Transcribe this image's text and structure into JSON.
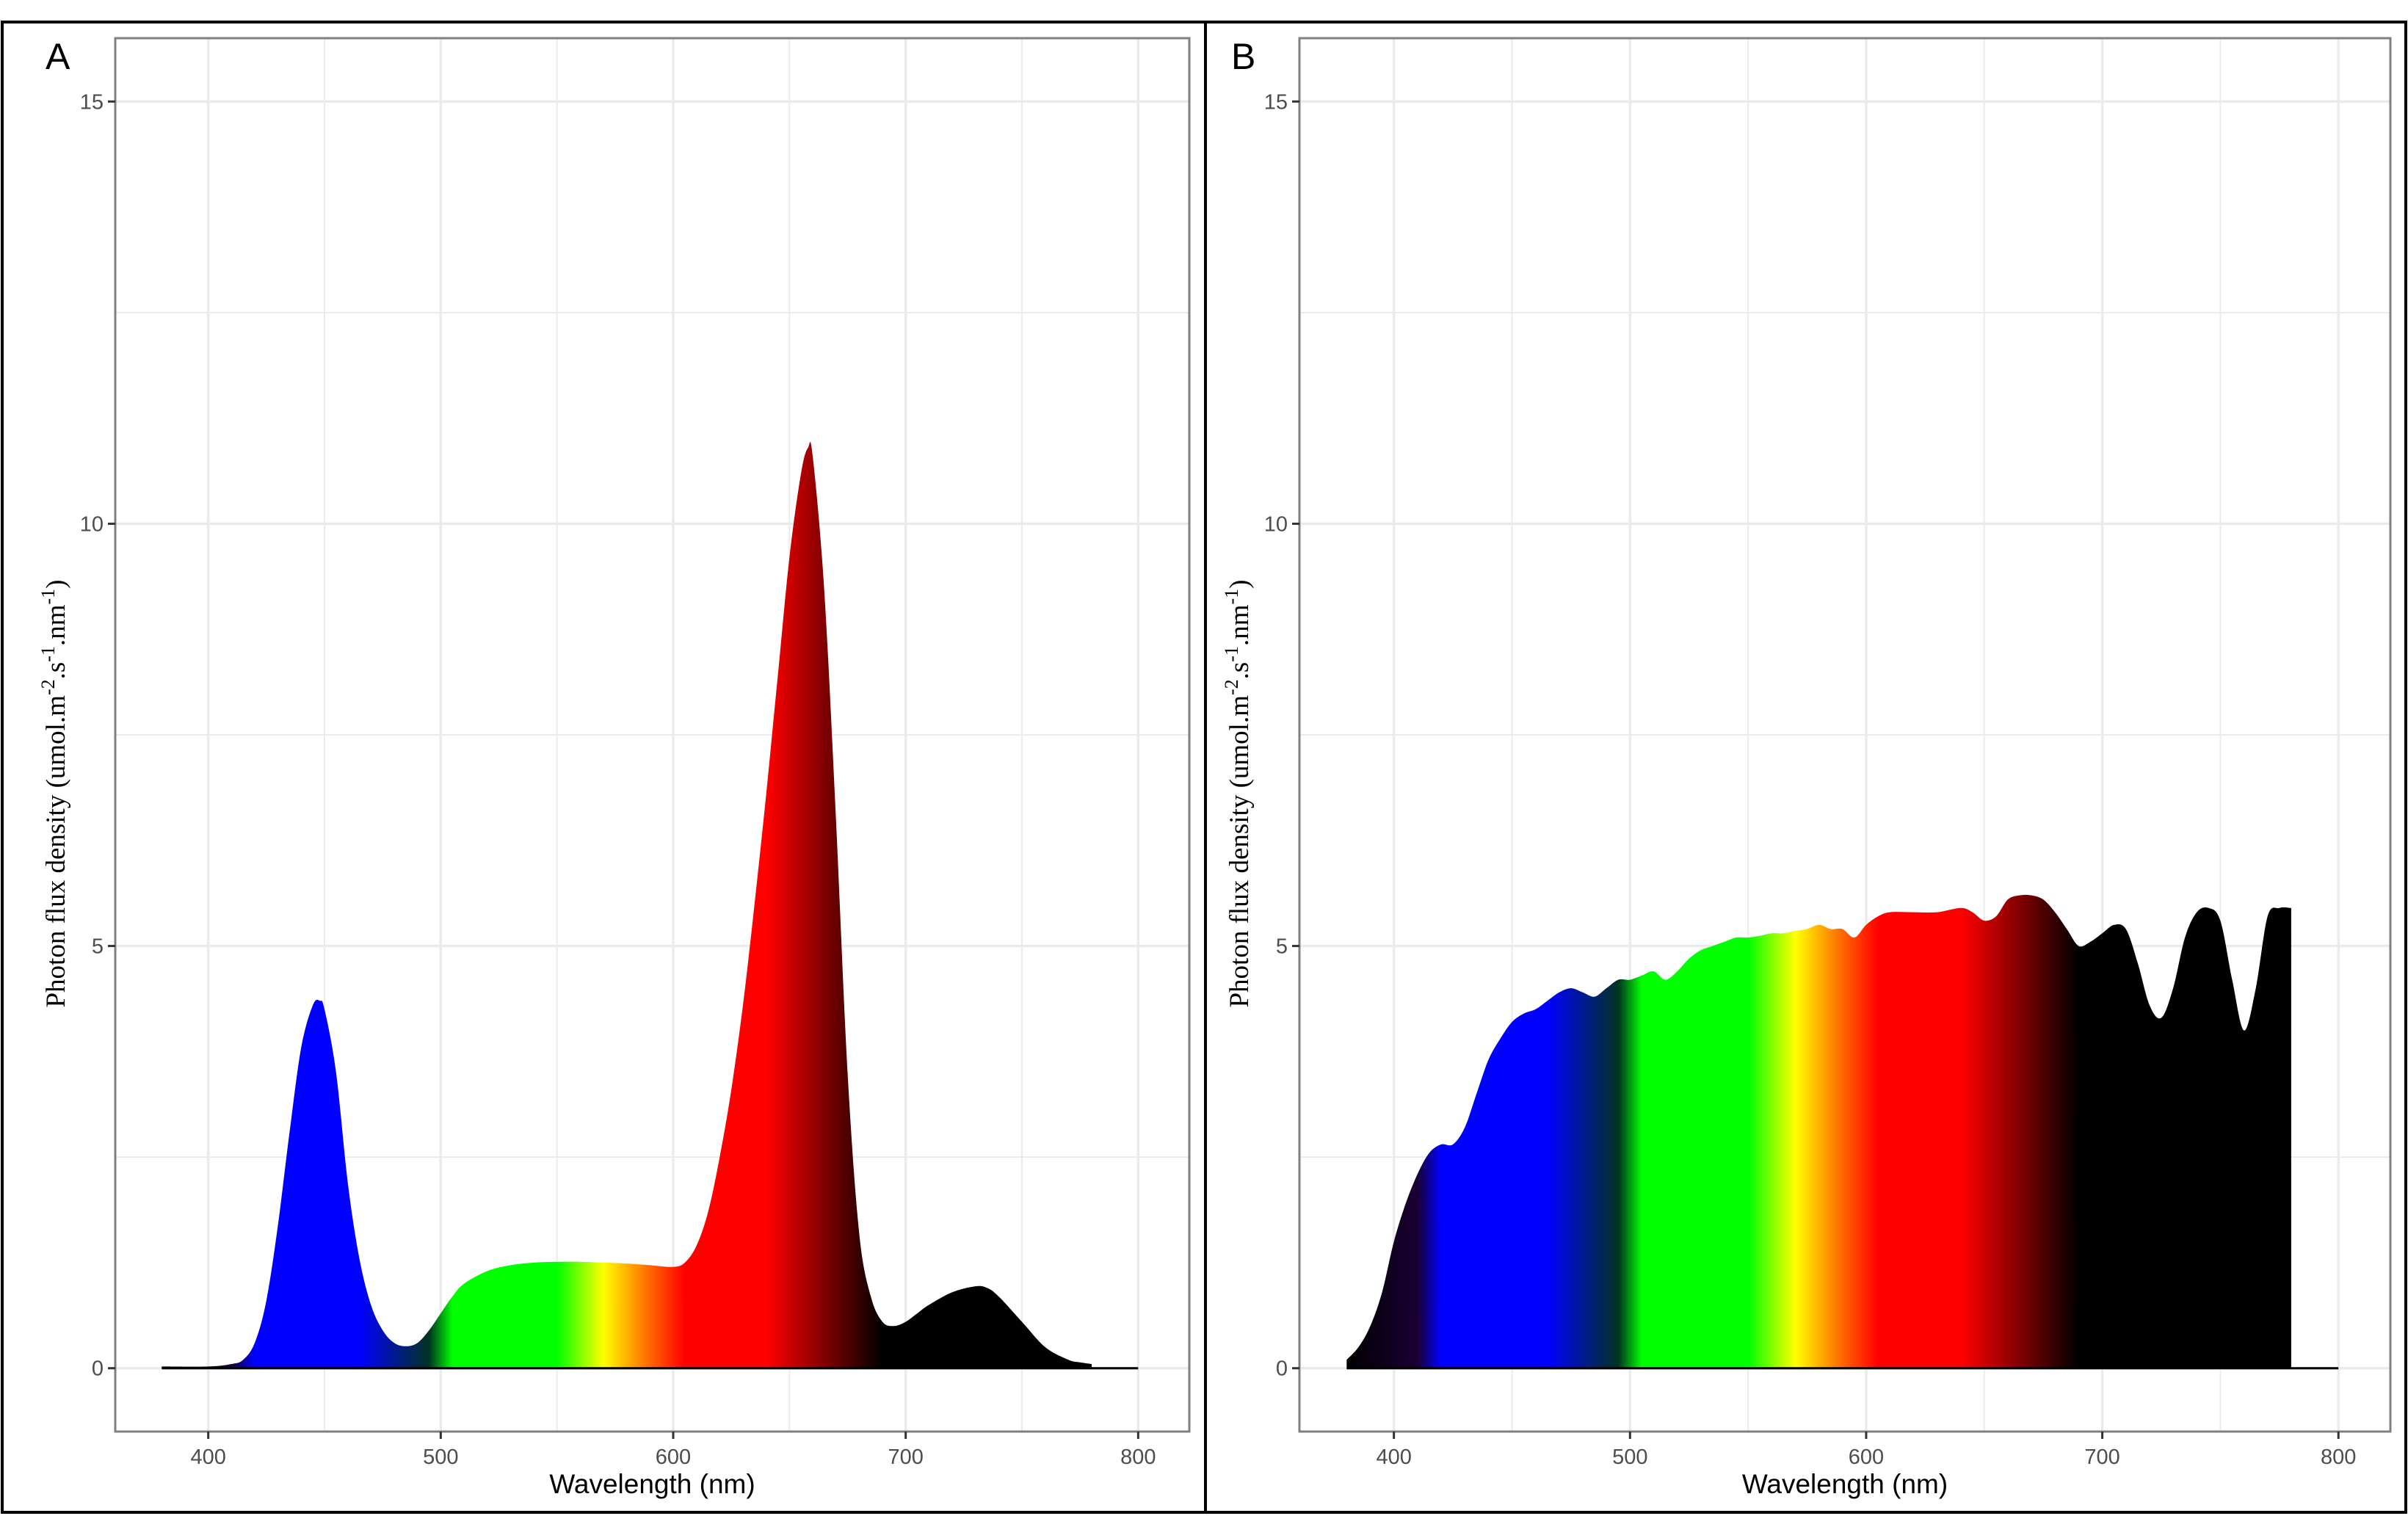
{
  "colors": {
    "background": "#ffffff",
    "gridline": "#ebebeb",
    "panel_border": "#808080",
    "frame": "#000000",
    "spectrum_stops": [
      {
        "nm": 380,
        "color": "#000000"
      },
      {
        "nm": 410,
        "color": "#1a0033"
      },
      {
        "nm": 420,
        "color": "#0000ff"
      },
      {
        "nm": 465,
        "color": "#0000ff"
      },
      {
        "nm": 495,
        "color": "#003322"
      },
      {
        "nm": 505,
        "color": "#00ff00"
      },
      {
        "nm": 550,
        "color": "#00ff00"
      },
      {
        "nm": 570,
        "color": "#ffff00"
      },
      {
        "nm": 590,
        "color": "#ff6600"
      },
      {
        "nm": 605,
        "color": "#ff0000"
      },
      {
        "nm": 640,
        "color": "#ff0000"
      },
      {
        "nm": 665,
        "color": "#800000"
      },
      {
        "nm": 690,
        "color": "#000000"
      },
      {
        "nm": 800,
        "color": "#000000"
      }
    ]
  },
  "chart_data": [
    {
      "panel": "A",
      "type": "area",
      "title": "",
      "xlabel": "Wavelength (nm)",
      "ylabel": "Photon flux  density  (umol.m-2.s-1.nm-1)",
      "ylabel_parts": {
        "base": "Photon flux  density  (umol.m",
        "sup1": "-2",
        "mid": ".s",
        "sup2": "-1",
        "mid2": ".nm",
        "sup3": "-1",
        "end": ")"
      },
      "xlim": [
        360,
        822
      ],
      "ylim": [
        -0.75,
        15.75
      ],
      "x_ticks": [
        400,
        500,
        600,
        700,
        800
      ],
      "x_tick_labels": [
        "400",
        "500",
        "600",
        "700",
        "800"
      ],
      "y_ticks": [
        0,
        5,
        10,
        15
      ],
      "y_tick_labels": [
        "0",
        "5",
        "10",
        "15"
      ],
      "grid": true,
      "baseline_end": 800,
      "x": [
        380,
        400,
        410,
        415,
        420,
        425,
        430,
        435,
        440,
        445,
        448,
        450,
        455,
        460,
        465,
        470,
        475,
        480,
        485,
        490,
        495,
        500,
        505,
        510,
        520,
        530,
        540,
        550,
        560,
        570,
        580,
        590,
        600,
        605,
        610,
        615,
        620,
        625,
        630,
        635,
        640,
        645,
        650,
        655,
        658,
        660,
        665,
        670,
        675,
        680,
        685,
        690,
        695,
        700,
        705,
        710,
        720,
        730,
        735,
        740,
        750,
        760,
        770,
        775,
        780
      ],
      "values": [
        0.02,
        0.02,
        0.05,
        0.1,
        0.3,
        0.8,
        1.7,
        2.8,
        3.8,
        4.3,
        4.35,
        4.25,
        3.5,
        2.2,
        1.3,
        0.75,
        0.45,
        0.3,
        0.26,
        0.3,
        0.45,
        0.65,
        0.85,
        1.0,
        1.15,
        1.22,
        1.25,
        1.26,
        1.26,
        1.25,
        1.24,
        1.22,
        1.2,
        1.25,
        1.45,
        1.85,
        2.5,
        3.3,
        4.3,
        5.5,
        6.8,
        8.2,
        9.6,
        10.6,
        10.9,
        10.8,
        9.2,
        6.5,
        3.5,
        1.6,
        0.85,
        0.55,
        0.5,
        0.55,
        0.65,
        0.75,
        0.9,
        0.97,
        0.95,
        0.85,
        0.55,
        0.25,
        0.1,
        0.07,
        0.05
      ]
    },
    {
      "panel": "B",
      "type": "area",
      "title": "",
      "xlabel": "Wavelength (nm)",
      "ylabel": "Photon flux  density  (umol.m-2.s-1.nm-1)",
      "ylabel_parts": {
        "base": "Photon flux  density  (umol.m",
        "sup1": "-2",
        "mid": ".s",
        "sup2": "-1",
        "mid2": ".nm",
        "sup3": "-1",
        "end": ")"
      },
      "xlim": [
        360,
        822
      ],
      "ylim": [
        -0.75,
        15.75
      ],
      "x_ticks": [
        400,
        500,
        600,
        700,
        800
      ],
      "x_tick_labels": [
        "400",
        "500",
        "600",
        "700",
        "800"
      ],
      "y_ticks": [
        0,
        5,
        10,
        15
      ],
      "y_tick_labels": [
        "0",
        "5",
        "10",
        "15"
      ],
      "grid": true,
      "baseline_end": 800,
      "x": [
        380,
        385,
        390,
        395,
        400,
        405,
        410,
        415,
        420,
        425,
        430,
        435,
        440,
        445,
        450,
        455,
        460,
        465,
        470,
        475,
        480,
        485,
        490,
        495,
        500,
        505,
        510,
        515,
        520,
        525,
        530,
        535,
        540,
        545,
        550,
        555,
        560,
        565,
        570,
        575,
        580,
        585,
        590,
        595,
        600,
        605,
        610,
        620,
        630,
        640,
        645,
        650,
        655,
        660,
        665,
        670,
        675,
        680,
        685,
        690,
        695,
        700,
        705,
        710,
        715,
        720,
        725,
        730,
        735,
        740,
        745,
        750,
        755,
        760,
        765,
        770,
        775,
        780
      ],
      "values": [
        0.1,
        0.25,
        0.5,
        0.9,
        1.5,
        1.95,
        2.3,
        2.55,
        2.65,
        2.65,
        2.85,
        3.25,
        3.65,
        3.9,
        4.1,
        4.2,
        4.25,
        4.35,
        4.45,
        4.5,
        4.45,
        4.4,
        4.5,
        4.6,
        4.6,
        4.65,
        4.7,
        4.6,
        4.7,
        4.85,
        4.95,
        5.0,
        5.05,
        5.1,
        5.1,
        5.12,
        5.15,
        5.15,
        5.18,
        5.2,
        5.25,
        5.2,
        5.2,
        5.1,
        5.25,
        5.35,
        5.4,
        5.4,
        5.4,
        5.45,
        5.4,
        5.3,
        5.35,
        5.55,
        5.6,
        5.6,
        5.55,
        5.4,
        5.2,
        5.0,
        5.05,
        5.15,
        5.25,
        5.2,
        4.8,
        4.3,
        4.15,
        4.5,
        5.1,
        5.4,
        5.45,
        5.3,
        4.6,
        4.0,
        4.5,
        5.35,
        5.45,
        5.45
      ]
    }
  ],
  "panels": [
    {
      "id": "A",
      "tag": "A"
    },
    {
      "id": "B",
      "tag": "B"
    }
  ]
}
